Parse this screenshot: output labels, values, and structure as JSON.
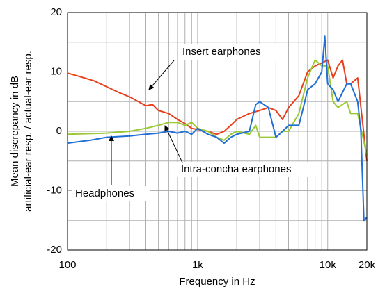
{
  "chart_data": {
    "type": "line",
    "xlabel": "Frequency in Hz",
    "ylabel": [
      "Mean discrepancy in dB",
      "artificial-ear resp. / actual-ear resp."
    ],
    "xscale": "log",
    "xlim": [
      100,
      20000
    ],
    "ylim": [
      -20,
      20
    ],
    "xticks": [
      100,
      {
        "value": 1000,
        "label": "1k"
      },
      {
        "value": 10000,
        "label": "10k"
      },
      {
        "value": 20000,
        "label": "20k"
      }
    ],
    "xminor": [
      200,
      300,
      400,
      500,
      600,
      700,
      800,
      900,
      2000,
      3000,
      4000,
      5000,
      6000,
      7000,
      8000,
      9000
    ],
    "yticks": [
      -20,
      -10,
      0,
      10,
      20
    ],
    "yminor": [
      -15,
      -5,
      5,
      15
    ],
    "grid": true,
    "series": [
      {
        "name": "Insert earphones",
        "color": "#e8401c",
        "x": [
          100,
          125,
          160,
          200,
          250,
          300,
          350,
          400,
          450,
          500,
          600,
          700,
          800,
          900,
          1000,
          1200,
          1400,
          1600,
          1800,
          2000,
          2500,
          3000,
          3500,
          4000,
          4500,
          5000,
          6000,
          7000,
          8000,
          9000,
          10000,
          11000,
          12000,
          13000,
          14000,
          15000,
          17000,
          20000
        ],
        "values": [
          9.8,
          9.2,
          8.5,
          7.5,
          6.5,
          5.8,
          5,
          4.3,
          4.5,
          3.5,
          3,
          2,
          1.3,
          0.5,
          0.3,
          0,
          -0.5,
          0,
          1,
          2,
          3,
          3.5,
          4,
          3.5,
          2,
          4,
          6,
          10,
          11,
          11.5,
          12,
          9,
          11,
          12,
          8,
          8,
          9,
          -5
        ]
      },
      {
        "name": "Intra-concha earphones",
        "color": "#99c933",
        "x": [
          100,
          200,
          300,
          400,
          500,
          600,
          700,
          800,
          900,
          1000,
          1200,
          1400,
          1600,
          1800,
          2000,
          2500,
          2800,
          3000,
          3500,
          4000,
          4500,
          5000,
          6000,
          7000,
          8000,
          9000,
          10000,
          11000,
          12000,
          14000,
          15000,
          17000,
          20000
        ],
        "values": [
          -0.5,
          -0.3,
          0,
          0.5,
          1,
          1.5,
          1.5,
          1,
          1.5,
          0.5,
          0,
          -1,
          -1.5,
          -0.5,
          0,
          -0.5,
          1,
          -1,
          -1,
          -1,
          0,
          0,
          3,
          9,
          12,
          11,
          11,
          5,
          4,
          5,
          3,
          3,
          -4
        ]
      },
      {
        "name": "Headphones",
        "color": "#1f6fd6",
        "x": [
          100,
          150,
          200,
          300,
          400,
          500,
          600,
          700,
          800,
          900,
          1000,
          1200,
          1400,
          1600,
          1800,
          2000,
          2500,
          2800,
          3000,
          3500,
          4000,
          4500,
          5000,
          6000,
          6500,
          7000,
          8000,
          9000,
          9500,
          10000,
          11000,
          12000,
          14000,
          15000,
          17000,
          18000,
          19000,
          20000
        ],
        "values": [
          -2,
          -1.5,
          -1,
          -0.8,
          -0.5,
          -0.3,
          0,
          -0.3,
          0,
          -0.5,
          0.5,
          -0.5,
          -1,
          -2,
          -1,
          -0.5,
          0,
          4.5,
          5,
          4,
          -1,
          0,
          1,
          1,
          4,
          7,
          8,
          10,
          16,
          8,
          7,
          5,
          8,
          8,
          5,
          0,
          -15,
          -14.5
        ]
      }
    ]
  }
}
